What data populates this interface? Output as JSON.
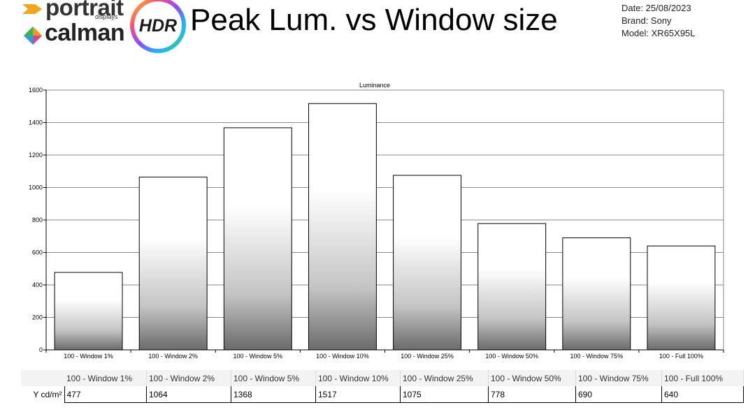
{
  "header": {
    "brand_top": "portrait",
    "brand_top_sub": "displays",
    "brand_bottom": "calman",
    "badge": "HDR",
    "title": "Peak Lum. vs Window size",
    "date": "Date: 25/08/2023",
    "brand": "Brand: Sony",
    "model": "Model: XR65X95L"
  },
  "chart_data": {
    "type": "bar",
    "title": "Luminance",
    "categories": [
      "100 - Window  1%",
      "100 - Window  2%",
      "100 - Window  5%",
      "100 - Window 10%",
      "100 - Window 25%",
      "100 - Window 50%",
      "100 - Window 75%",
      "100 - Full  100%"
    ],
    "values": [
      477,
      1064,
      1368,
      1517,
      1075,
      778,
      690,
      640
    ],
    "ylim": [
      0,
      1600
    ],
    "yticks": [
      0,
      200,
      400,
      600,
      800,
      1000,
      1200,
      1400,
      1600
    ],
    "grid": true,
    "legend": "none"
  },
  "table": {
    "row_label": "Y cd/m²",
    "headers": [
      "100 - Window  1%",
      "100 - Window  2%",
      "100 - Window  5%",
      "100 - Window 10%",
      "100 - Window 25%",
      "100 - Window 50%",
      "100 - Window 75%",
      "100 - Full  100%"
    ],
    "values": [
      "477",
      "1064",
      "1368",
      "1517",
      "1075",
      "778",
      "690",
      "640"
    ]
  }
}
